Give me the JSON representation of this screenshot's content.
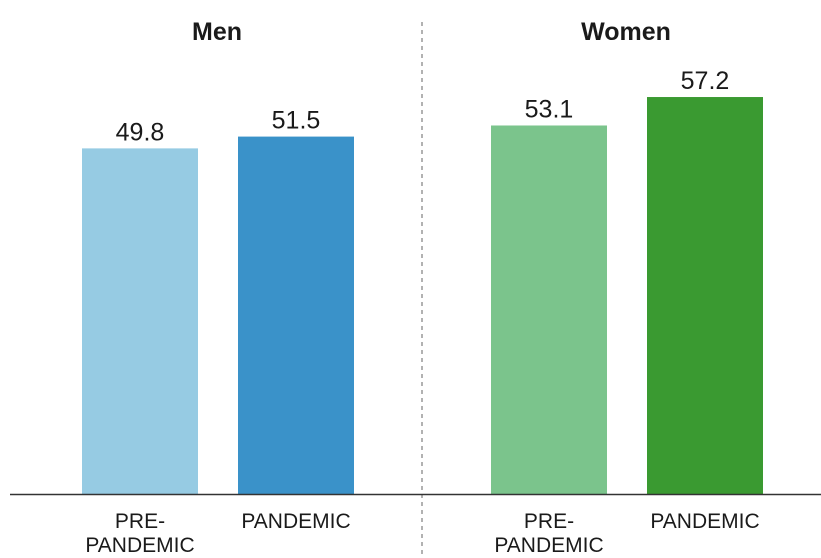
{
  "chart_data": {
    "type": "bar",
    "ylim": [
      0,
      60
    ],
    "grid": false,
    "panels": [
      {
        "title": "Men",
        "bars": [
          {
            "category": [
              "PRE-",
              "PANDEMIC"
            ],
            "value": 49.8,
            "label": "49.8",
            "color": "#96cbe3"
          },
          {
            "category": [
              "PANDEMIC"
            ],
            "value": 51.5,
            "label": "51.5",
            "color": "#3a92c9"
          }
        ]
      },
      {
        "title": "Women",
        "bars": [
          {
            "category": [
              "PRE-",
              "PANDEMIC"
            ],
            "value": 53.1,
            "label": "53.1",
            "color": "#7bc48c"
          },
          {
            "category": [
              "PANDEMIC"
            ],
            "value": 57.2,
            "label": "57.2",
            "color": "#3a9a31"
          }
        ]
      }
    ]
  }
}
